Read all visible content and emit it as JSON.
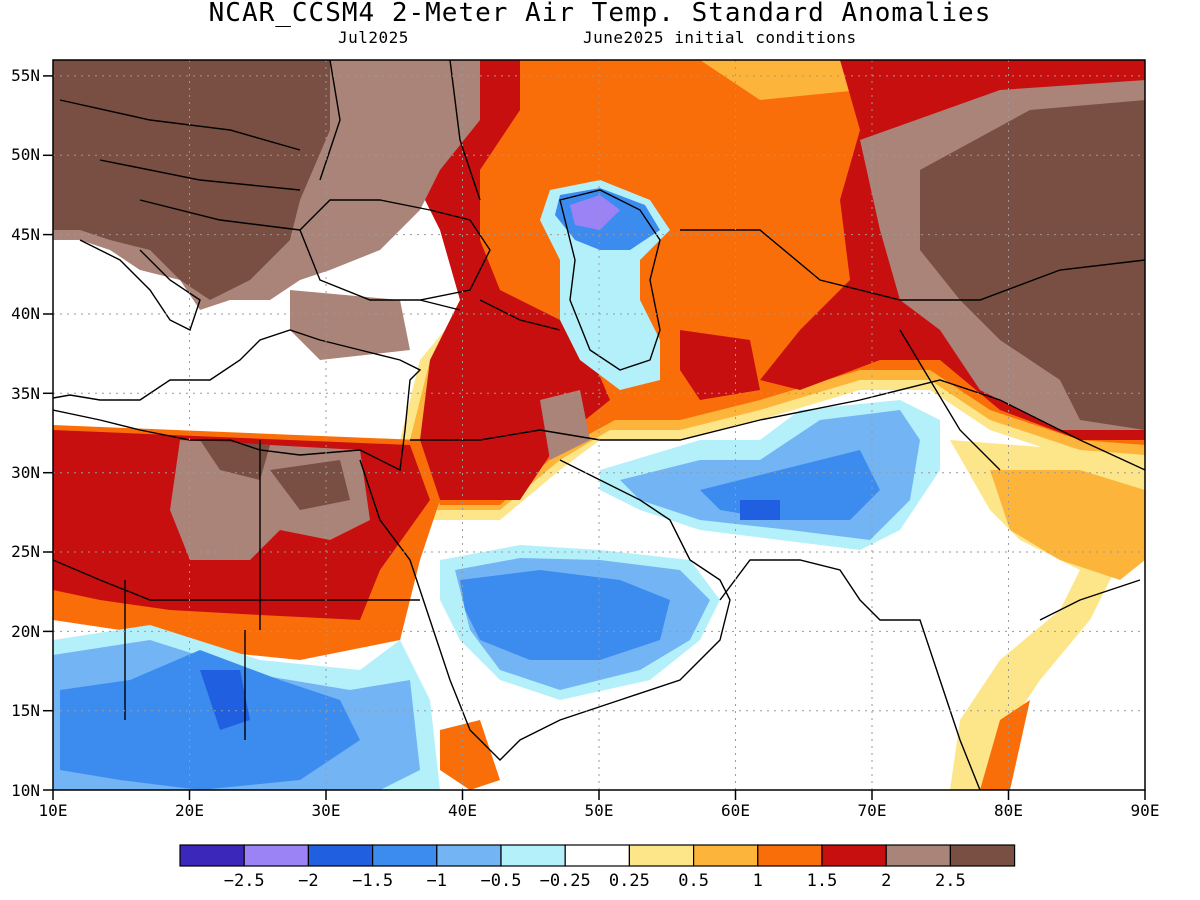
{
  "title": "NCAR_CCSM4 2-Meter Air Temp. Standard Anomalies",
  "valid_month": "Jul2025",
  "init_conditions": "June2025 initial conditions",
  "map": {
    "lon_range": [
      10,
      90
    ],
    "lat_range": [
      10,
      56
    ],
    "x_ticks": [
      "10E",
      "20E",
      "30E",
      "40E",
      "50E",
      "60E",
      "70E",
      "80E",
      "90E"
    ],
    "y_ticks": [
      "55N",
      "50N",
      "45N",
      "40N",
      "35N",
      "30N",
      "25N",
      "20N",
      "15N",
      "10N"
    ],
    "gridlines": "dotted",
    "regions_shown": [
      "Europe",
      "North Africa",
      "Middle East",
      "Arabian Peninsula",
      "Caspian Sea",
      "Central Asia",
      "South Asia"
    ]
  },
  "colorbar": {
    "labels": [
      "-2.5",
      "-2",
      "-1.5",
      "-1",
      "-0.5",
      "-0.25",
      "0.25",
      "0.5",
      "1",
      "1.5",
      "2",
      "2.5"
    ],
    "colors": [
      "#3b27b9",
      "#9b82f5",
      "#1f5fe0",
      "#3c8cf0",
      "#73b4f5",
      "#b4f0fa",
      "#ffffff",
      "#fde68a",
      "#fcb43a",
      "#fa6e0a",
      "#c80f0f",
      "#aa8478",
      "#784f42"
    ]
  }
}
